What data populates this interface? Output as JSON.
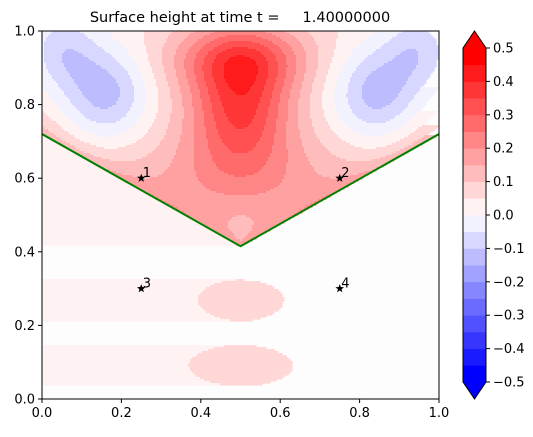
{
  "chart_data": {
    "type": "heatmap",
    "title": "Surface height at time t =     1.40000000",
    "xlabel": "",
    "ylabel": "",
    "xlim": [
      0,
      1
    ],
    "ylim": [
      0,
      1
    ],
    "xticks": [
      "0.0",
      "0.2",
      "0.4",
      "0.6",
      "0.8",
      "1.0"
    ],
    "yticks": [
      "0.0",
      "0.2",
      "0.4",
      "0.6",
      "0.8",
      "1.0"
    ],
    "grid": false,
    "colorbar": {
      "levels": [
        -0.5,
        -0.45,
        -0.4,
        -0.35,
        -0.3,
        -0.25,
        -0.2,
        -0.15,
        -0.1,
        -0.05,
        0,
        0.05,
        0.1,
        0.15,
        0.2,
        0.25,
        0.3,
        0.35,
        0.4,
        0.45,
        0.5
      ],
      "tick_labels": [
        "−0.5",
        "−0.4",
        "−0.3",
        "−0.2",
        "−0.1",
        "0.0",
        "0.1",
        "0.2",
        "0.3",
        "0.4",
        "0.5"
      ],
      "tick_values": [
        -0.5,
        -0.4,
        -0.3,
        -0.2,
        -0.1,
        0,
        0.1,
        0.2,
        0.3,
        0.4,
        0.5
      ],
      "extend": "both",
      "colormap": "bwr",
      "low_color": "#0000ff",
      "high_color": "#ff0000"
    },
    "shoreline": {
      "color": "#008000",
      "x": [
        0,
        0.5,
        1
      ],
      "y": [
        0.72,
        0.415,
        0.72
      ]
    },
    "gauges": [
      {
        "label": "1",
        "x": 0.25,
        "y": 0.6
      },
      {
        "label": "2",
        "x": 0.75,
        "y": 0.6
      },
      {
        "label": "3",
        "x": 0.25,
        "y": 0.3
      },
      {
        "label": "4",
        "x": 0.75,
        "y": 0.3
      }
    ],
    "features": [
      {
        "kind": "crest",
        "x": 0.5,
        "y": 0.8,
        "value": 0.35
      },
      {
        "kind": "trough-left",
        "x": 0.05,
        "y": 0.95,
        "value": -0.1
      },
      {
        "kind": "trough-right",
        "x": 0.95,
        "y": 0.95,
        "value": -0.1
      },
      {
        "kind": "onshore-bump",
        "x": 0.5,
        "y": 0.27,
        "value": 0.05
      },
      {
        "kind": "onshore-bump",
        "x": 0.5,
        "y": 0.09,
        "value": 0.05
      }
    ]
  }
}
